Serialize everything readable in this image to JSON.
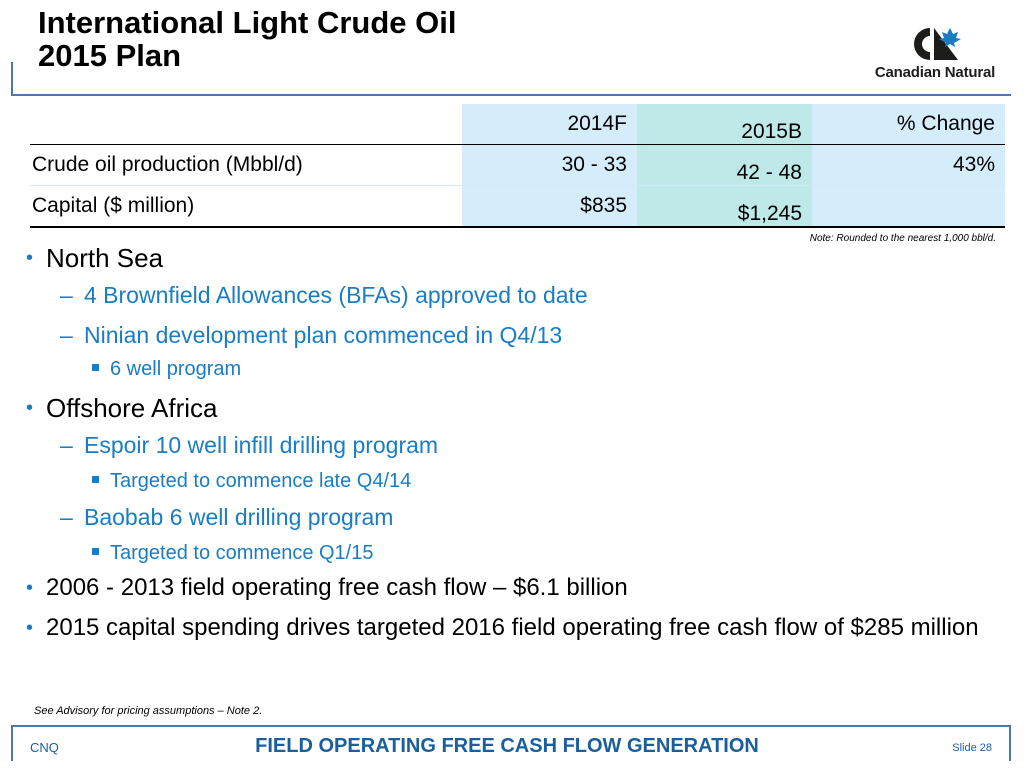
{
  "header": {
    "title_line1": "International Light Crude Oil",
    "title_line2": "2015 Plan",
    "logo_text": "Canadian Natural"
  },
  "table": {
    "columns": [
      "",
      "2014F",
      "2015B",
      "% Change"
    ],
    "rows": [
      {
        "label": "Crude oil production (Mbbl/d)",
        "v2014": "30 - 33",
        "v2015": "42 - 48",
        "change": "43%"
      },
      {
        "label": "Capital ($ million)",
        "v2014": "$835",
        "v2015": "$1,245",
        "change": ""
      }
    ],
    "note": "Note: Rounded to the nearest 1,000 bbl/d."
  },
  "bullets": [
    {
      "text": "North Sea",
      "children": [
        {
          "text": "4 Brownfield Allowances (BFAs) approved to date",
          "children": []
        },
        {
          "text": "Ninian development plan commenced in Q4/13",
          "children": [
            {
              "text": "6 well program"
            }
          ]
        }
      ]
    },
    {
      "text": "Offshore Africa",
      "children": [
        {
          "text": "Espoir 10 well infill drilling program",
          "children": [
            {
              "text": "Targeted to commence late Q4/14"
            }
          ]
        },
        {
          "text": "Baobab 6 well drilling program",
          "children": [
            {
              "text": "Targeted to commence Q1/15"
            }
          ]
        }
      ]
    },
    {
      "text": "2006 - 2013 field operating free cash flow – $6.1 billion",
      "children": []
    },
    {
      "text": "2015 capital spending drives targeted 2016 field operating free cash flow of $285 million",
      "children": []
    }
  ],
  "advisory": "See Advisory for pricing assumptions – Note 2.",
  "footer": {
    "left": "CNQ",
    "center": "FIELD OPERATING FREE CASH FLOW GENERATION",
    "right": "Slide 28"
  },
  "colors": {
    "accent_blue": "#1a7dc4",
    "frame_blue": "#4a79b0",
    "col_2014": "#d5edfb",
    "col_2015": "#bfe8e8"
  }
}
